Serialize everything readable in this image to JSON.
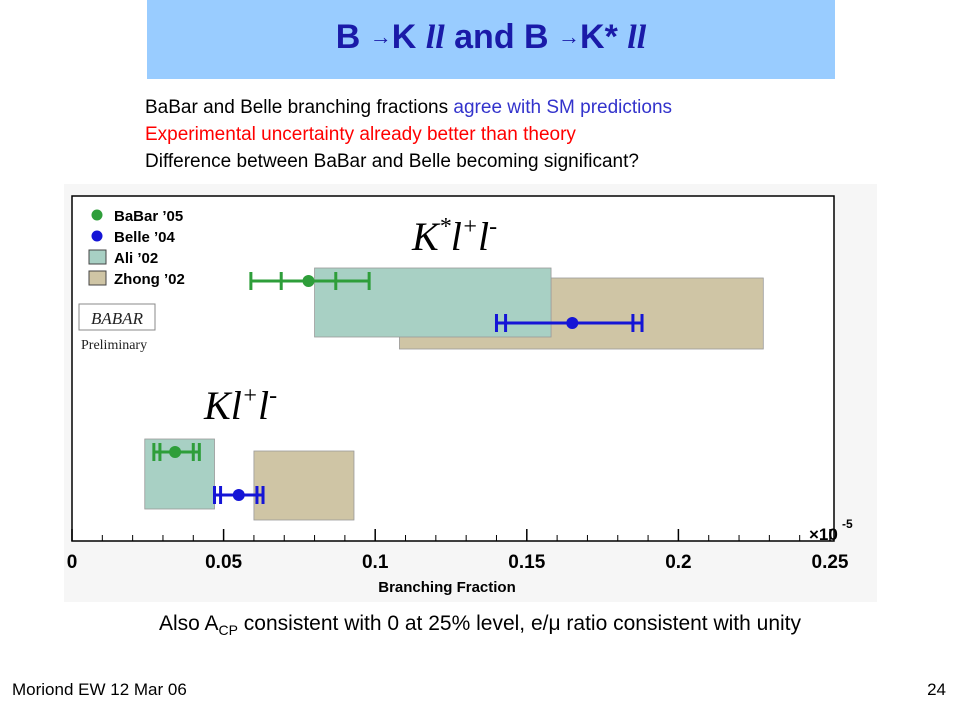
{
  "slide": {
    "title_b1": "B ",
    "title_arrow": "→",
    "title_k": "K ",
    "title_ll1": "ll",
    "title_and": " and B ",
    "title_kstar": "K* ",
    "title_ll2": "ll",
    "bullet1_black": "BaBar and Belle branching fractions ",
    "bullet1_blue": "agree with SM predictions",
    "bullet2": "Experimental uncertainty already better than theory",
    "bullet3": "Difference between BaBar and Belle becoming significant?",
    "bottom_pre": "Also A",
    "bottom_sub": "CP",
    "bottom_post": " consistent with 0 at 25% level, e/μ ratio consistent with unity",
    "footer_left": "Moriond EW 12 Mar 06",
    "page_number": "24"
  },
  "colors": {
    "babar": "#2e9e3a",
    "belle": "#1515d6",
    "ali": "#a8d0c4",
    "zhong": "#cfc5a5",
    "title_bg": "#99ccff",
    "title_text": "#1a1aa8"
  },
  "chart_data": {
    "type": "horizontal-interval",
    "xlabel": "Branching Fraction",
    "x_multiplier": "×10",
    "x_multiplier_exp": "-5",
    "xlim": [
      0,
      0.25
    ],
    "xticks": [
      0,
      0.05,
      0.1,
      0.15,
      0.2,
      0.25
    ],
    "xtick_labels": [
      "0",
      "0.05",
      "0.1",
      "0.15",
      "0.2",
      "0.25"
    ],
    "legend_placement": "top-left",
    "legend": [
      {
        "label": "BaBar ’05",
        "kind": "point",
        "series": "babar"
      },
      {
        "label": "Belle ’04",
        "kind": "point",
        "series": "belle"
      },
      {
        "label": "Ali ’02",
        "kind": "box",
        "series": "ali"
      },
      {
        "label": "Zhong ’02",
        "kind": "box",
        "series": "zhong"
      }
    ],
    "babar_logo": "BABAR",
    "preliminary_label": "Preliminary",
    "groups": [
      {
        "name": "K*l+l-",
        "label_base": "K",
        "label_sup1": "*",
        "label_l1": "l",
        "label_sup2": "+",
        "label_l2": "l",
        "label_sup3": "-",
        "theory": [
          {
            "series": "zhong",
            "low": 0.108,
            "high": 0.228
          },
          {
            "series": "ali",
            "low": 0.08,
            "high": 0.158
          }
        ],
        "measurements": [
          {
            "series": "babar",
            "value": 0.078,
            "stat": [
              0.069,
              0.087
            ],
            "total": [
              0.059,
              0.098
            ]
          },
          {
            "series": "belle",
            "value": 0.165,
            "stat": [
              0.143,
              0.185
            ],
            "total": [
              0.14,
              0.188
            ]
          }
        ]
      },
      {
        "name": "Kl+l-",
        "label_base": "K",
        "label_sup1": "",
        "label_l1": "l",
        "label_sup2": "+",
        "label_l2": "l",
        "label_sup3": "-",
        "theory": [
          {
            "series": "ali",
            "low": 0.024,
            "high": 0.047
          },
          {
            "series": "zhong",
            "low": 0.06,
            "high": 0.093
          }
        ],
        "measurements": [
          {
            "series": "babar",
            "value": 0.034,
            "stat": [
              0.029,
              0.04
            ],
            "total": [
              0.027,
              0.042
            ]
          },
          {
            "series": "belle",
            "value": 0.055,
            "stat": [
              0.049,
              0.061
            ],
            "total": [
              0.047,
              0.063
            ]
          }
        ]
      }
    ]
  }
}
